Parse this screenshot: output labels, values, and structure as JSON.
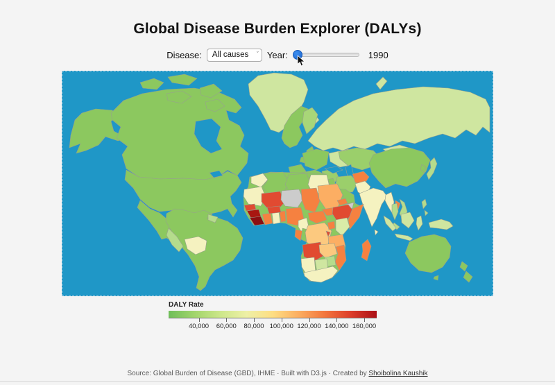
{
  "header": {
    "title": "Global Disease Burden Explorer (DALYs)"
  },
  "controls": {
    "disease_label": "Disease:",
    "disease_value": "All causes",
    "year_label": "Year:",
    "year_value": "1990"
  },
  "legend": {
    "title": "DALY Rate",
    "ticks": [
      "40,000",
      "60,000",
      "80,000",
      "100,000",
      "120,000",
      "140,000",
      "160,000"
    ],
    "tick_positions_pct": [
      14.5,
      27.75,
      41.0,
      54.25,
      67.5,
      80.75,
      94.0
    ],
    "gradient": [
      "#6fbe59",
      "#a2d56b",
      "#cde78a",
      "#eef0a6",
      "#fede83",
      "#fcae61",
      "#f3763d",
      "#dd3d2a",
      "#ab1016"
    ]
  },
  "footer": {
    "text_before_link": "Source: Global Burden of Disease (GBD), IHME · Built with D3.js · Created by ",
    "link_text": "Shoibolina Kaushik"
  },
  "map": {
    "ocean_color": "#1f97c7",
    "border_color": "#97a08f",
    "regions": {
      "lake": "#1f97c7",
      "alaska": "#8cc85f",
      "canada": "#8cc85f",
      "usa": "#8cc85f",
      "mexico": "#8cc85f",
      "central-america": "#8cc85f",
      "guatemala": "#f5f2c0",
      "cuba": "#8cc85f",
      "hispaniola": "#8cc85f",
      "arctic-island-1": "#8cc85f",
      "arctic-island-2": "#8cc85f",
      "arctic-island-3": "#8cc85f",
      "arctic-island-4": "#8cc85f",
      "arctic-island-5": "#8cc85f",
      "greenland": "#cfe6a0",
      "iceland": "#cfe6a0",
      "south-america": "#8cc85f",
      "peru": "#b5dc8c",
      "bolivia": "#f5f2c0",
      "guyanas": "#b5dc8c",
      "scandinavia": "#8cc85f",
      "finland": "#a8d678",
      "uk": "#8cc85f",
      "ireland": "#8cc85f",
      "iberia": "#8cc85f",
      "france": "#8cc85f",
      "central-europe": "#8cc85f",
      "italy": "#8cc85f",
      "balkans": "#9bcf6b",
      "eastern-europe": "#cfe6a0",
      "russia": "#cfe6a0",
      "novaya-zemlya": "#cfe6a0",
      "kazakhstan": "#9bcf6b",
      "china": "#8cc85f",
      "mongolia": "#cfe6a0",
      "korea": "#8cc85f",
      "japan": "#b5dc8c",
      "turkey": "#8cc85f",
      "levant-iraq": "#8cc85f",
      "iran": "#9bcf6b",
      "arabia": "#8cc85f",
      "yemen": "#f58140",
      "oman": "#b5dc8c",
      "afghanistan": "#f58140",
      "pakistan": "#f5f2c0",
      "india": "#f5f2c0",
      "sri-lanka": "#f5f2c0",
      "myanmar": "#f5f2c0",
      "thailand": "#b5dc8c",
      "laos": "#f58140",
      "vietnam": "#b5dc8c",
      "malaysia": "#b5dc8c",
      "philippines-north": "#b5dc8c",
      "philippines-south": "#b5dc8c",
      "sumatra": "#cfe6a0",
      "borneo": "#cfe6a0",
      "java": "#cfe6a0",
      "sulawesi": "#cfe6a0",
      "new-guinea": "#cfe6a0",
      "australia": "#8cc85f",
      "tasmania": "#8cc85f",
      "nz-north": "#8cc85f",
      "nz-south": "#8cc85f",
      "africa-base": "#8cc85f",
      "morocco": "#f5f2c0",
      "mauritania": "#f5f2c0",
      "algeria": "#8cc85f",
      "libya": "#8cc85f",
      "egypt": "#f5f2c0",
      "mali": "#e14a31",
      "niger": "#cccccc",
      "chad": "#f58140",
      "sudan": "#fcae63",
      "south-sudan": "#f58140",
      "eritrea": "#f58140",
      "djibouti-somaliland": "#cccccc",
      "ethiopia": "#e14a31",
      "somalia": "#f58140",
      "senegal": "#e14a31",
      "guinea": "#a81711",
      "sierra-leone-liberia": "#8c0f12",
      "ivory-coast": "#f58140",
      "ghana": "#f5f2c0",
      "togo-benin": "#f58140",
      "burkina-faso": "#e14a31",
      "nigeria": "#f58140",
      "cameroon": "#f5f2c0",
      "central-african-republic": "#f58140",
      "gabon": "#f58140",
      "congo": "#8cc85f",
      "drc": "#fcc97f",
      "uganda": "#f58140",
      "kenya": "#d9eca8",
      "rwanda-burundi": "#e14a31",
      "tanzania": "#fcae63",
      "angola": "#e14a31",
      "zambia": "#fcc97f",
      "mozambique": "#f58140",
      "zimbabwe": "#b5dc8c",
      "namibia": "#f5f2c0",
      "botswana": "#cfe6a0",
      "south-africa": "#f5f2c0",
      "madagascar": "#f58140"
    }
  }
}
